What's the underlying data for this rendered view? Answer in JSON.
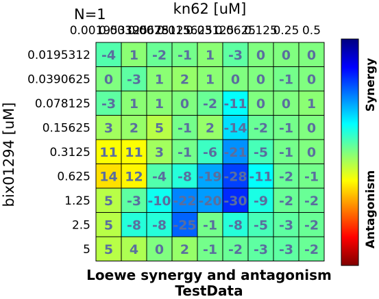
{
  "chart_data": {
    "type": "heatmap",
    "title_top": "kn62 [uM]",
    "corner_label": "N=1",
    "ylabel": "bix01294 [uM]",
    "xlabel_line1": "Loewe synergy and antagonism",
    "xlabel_line2": "TestData",
    "x_ticks": [
      "0.001953125",
      "0.00390625",
      "0.0078125",
      "0.015625",
      "0.03125",
      "0.0625",
      "0.125",
      "0.25",
      "0.5"
    ],
    "y_ticks": [
      "0.0195312",
      "0.0390625",
      "0.078125",
      "0.15625",
      "0.3125",
      "0.625",
      "1.25",
      "2.5",
      "5"
    ],
    "values": [
      [
        -4,
        1,
        -2,
        -1,
        1,
        -3,
        0,
        0,
        0
      ],
      [
        0,
        -3,
        1,
        2,
        1,
        0,
        0,
        -1,
        0
      ],
      [
        -3,
        1,
        1,
        0,
        -2,
        -11,
        0,
        0,
        1
      ],
      [
        3,
        2,
        5,
        -1,
        2,
        -14,
        -2,
        -1,
        0
      ],
      [
        11,
        11,
        3,
        -1,
        -6,
        -21,
        -5,
        -1,
        0
      ],
      [
        14,
        12,
        -4,
        -8,
        -19,
        -28,
        -11,
        -2,
        -1
      ],
      [
        5,
        -3,
        -10,
        -22,
        -20,
        -30,
        -9,
        -2,
        -2
      ],
      [
        5,
        -8,
        -8,
        -25,
        -1,
        -8,
        -5,
        -3,
        -2
      ],
      [
        5,
        4,
        0,
        2,
        -1,
        -2,
        -3,
        -3,
        -2
      ]
    ],
    "colorbar": {
      "colormap": "jet",
      "top_label": "Synergy",
      "bottom_label": "Antagonism",
      "range": [
        -45,
        45
      ]
    },
    "value_text_color": "#5a6e9e"
  }
}
